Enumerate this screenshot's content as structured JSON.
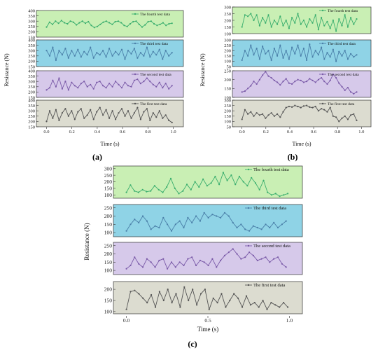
{
  "figure": {
    "panel_labels": [
      "(a)",
      "(b)",
      "(c)"
    ],
    "series_names": [
      "The fourth test data",
      "The third test data",
      "The second test data",
      "The first test data"
    ],
    "series_colors": [
      "#3aae6e",
      "#4a7fa8",
      "#7a5aa8",
      "#555555"
    ],
    "bg_colors": [
      "#c9efb4",
      "#8fd3e6",
      "#d6c9ea",
      "#dcdcd0"
    ],
    "marker": "circle"
  },
  "chart_data": [
    {
      "type": "line",
      "panel": "(a)",
      "xlabel": "Time (s)",
      "ylabel": "Resistance (N)",
      "xlim": [
        -0.08,
        1.08
      ],
      "xticks": [
        "0.0",
        "0.2",
        "0.4",
        "0.6",
        "0.8",
        "1.0"
      ],
      "grid": false,
      "legend_position": "top-right",
      "subplots": [
        {
          "name": "The fourth test data",
          "ylim": [
            150,
            400
          ],
          "yticks": [
            150,
            200,
            250,
            300,
            350,
            400
          ],
          "x_end": 0.99,
          "y": [
            245,
            290,
            270,
            300,
            280,
            305,
            285,
            275,
            300,
            290,
            265,
            285,
            300,
            280,
            295,
            260,
            240,
            250,
            270,
            290,
            300,
            285,
            270,
            295,
            300,
            285,
            260,
            250,
            275,
            295,
            300,
            270,
            245,
            265,
            295,
            300,
            275,
            260,
            270,
            285,
            260,
            275,
            280
          ]
        },
        {
          "name": "The third test data",
          "ylim": [
            150,
            400
          ],
          "yticks": [
            150,
            200,
            250,
            300,
            350,
            400
          ],
          "x_end": 0.99,
          "y": [
            300,
            250,
            330,
            210,
            300,
            260,
            320,
            230,
            300,
            250,
            310,
            240,
            290,
            260,
            330,
            230,
            280,
            260,
            300,
            240,
            320,
            250,
            290,
            260,
            310,
            220,
            300,
            270,
            320,
            230,
            280,
            250,
            330,
            240,
            290,
            260,
            310,
            220,
            300,
            250,
            280
          ]
        },
        {
          "name": "The second test data",
          "ylim": [
            150,
            400
          ],
          "yticks": [
            150,
            200,
            250,
            300,
            350,
            400
          ],
          "x_end": 0.99,
          "y": [
            220,
            240,
            310,
            250,
            330,
            230,
            300,
            220,
            290,
            260,
            240,
            280,
            300,
            250,
            270,
            230,
            290,
            300,
            260,
            240,
            280,
            250,
            300,
            270,
            240,
            290,
            260,
            250,
            310,
            320,
            280,
            300,
            330,
            300,
            270,
            250,
            290,
            240,
            280,
            230,
            260
          ]
        },
        {
          "name": "The first test data",
          "ylim": [
            150,
            400
          ],
          "yticks": [
            150,
            200,
            250,
            300,
            350,
            400
          ],
          "x_end": 0.99,
          "y": [
            200,
            300,
            230,
            310,
            210,
            280,
            320,
            250,
            300,
            220,
            290,
            320,
            230,
            260,
            310,
            220,
            290,
            330,
            260,
            310,
            230,
            300,
            220,
            280,
            320,
            250,
            300,
            230,
            280,
            330,
            220,
            290,
            320,
            210,
            280,
            240,
            300,
            230,
            260,
            210,
            190
          ]
        }
      ]
    },
    {
      "type": "line",
      "panel": "(b)",
      "xlabel": "Time (s)",
      "ylabel": "Resistance (N)",
      "xlim": [
        -0.08,
        1.08
      ],
      "xticks": [
        "0.0",
        "0.2",
        "0.4",
        "0.6",
        "0.8",
        "1.0"
      ],
      "grid": false,
      "legend_position": "top-right",
      "subplots": [
        {
          "name": "The fourth test data",
          "ylim": [
            100,
            300
          ],
          "yticks": [
            100,
            150,
            200,
            250,
            300
          ],
          "x_end": 0.96,
          "y": [
            150,
            240,
            230,
            250,
            200,
            240,
            160,
            220,
            180,
            240,
            150,
            200,
            170,
            230,
            160,
            200,
            140,
            220,
            180,
            250,
            170,
            200,
            150,
            210,
            180,
            240,
            130,
            220,
            160,
            190,
            140,
            200,
            120,
            210,
            160,
            240,
            150,
            220,
            170,
            210
          ]
        },
        {
          "name": "The third test data",
          "ylim": [
            50,
            300
          ],
          "yticks": [
            50,
            100,
            150,
            200,
            250,
            300
          ],
          "x_end": 0.96,
          "y": [
            110,
            200,
            150,
            250,
            160,
            220,
            120,
            240,
            170,
            200,
            110,
            220,
            150,
            250,
            130,
            200,
            120,
            230,
            170,
            250,
            150,
            220,
            110,
            260,
            140,
            200,
            160,
            230,
            120,
            180,
            140,
            210,
            100,
            190,
            150,
            200,
            120,
            170,
            140,
            160
          ]
        },
        {
          "name": "The second test data",
          "ylim": [
            100,
            250
          ],
          "yticks": [
            100,
            150,
            200,
            250
          ],
          "x_end": 0.96,
          "y": [
            130,
            135,
            150,
            165,
            190,
            175,
            200,
            225,
            245,
            220,
            210,
            195,
            185,
            170,
            190,
            205,
            180,
            175,
            190,
            200,
            195,
            185,
            190,
            205,
            195,
            185,
            200,
            210,
            190,
            175,
            195,
            230,
            210,
            180,
            160,
            140,
            155,
            130,
            120,
            130
          ]
        },
        {
          "name": "The first test data",
          "ylim": [
            50,
            300
          ],
          "yticks": [
            50,
            100,
            150,
            200,
            250,
            300
          ],
          "x_end": 0.96,
          "y": [
            120,
            210,
            170,
            190,
            150,
            180,
            160,
            170,
            130,
            160,
            180,
            150,
            170,
            140,
            190,
            230,
            240,
            235,
            250,
            240,
            230,
            245,
            250,
            235,
            230,
            240,
            200,
            220,
            210,
            190,
            230,
            150,
            140,
            100,
            130,
            150,
            120,
            160,
            170,
            110
          ]
        }
      ]
    },
    {
      "type": "line",
      "panel": "(c)",
      "xlabel": "Time (s)",
      "ylabel": "Resistance (N)",
      "xlim": [
        -0.08,
        1.08
      ],
      "xticks": [
        "0.0",
        "0.5",
        "1.0"
      ],
      "grid": false,
      "legend_position": "top-right",
      "subplots": [
        {
          "name": "The fourth test data",
          "ylim": [
            75,
            320
          ],
          "yticks": [
            100,
            150,
            200,
            250,
            300
          ],
          "x_end": 0.99,
          "y": [
            120,
            175,
            130,
            120,
            140,
            125,
            130,
            170,
            140,
            120,
            160,
            225,
            150,
            110,
            130,
            180,
            140,
            200,
            160,
            220,
            170,
            190,
            240,
            180,
            270,
            210,
            250,
            180,
            240,
            200,
            170,
            230,
            190,
            140,
            210,
            120,
            100,
            110,
            90,
            100,
            110
          ]
        },
        {
          "name": "The third test data",
          "ylim": [
            75,
            270
          ],
          "yticks": [
            100,
            150,
            200,
            250
          ],
          "x_end": 0.98,
          "y": [
            110,
            150,
            180,
            160,
            200,
            170,
            120,
            140,
            130,
            190,
            150,
            110,
            150,
            170,
            130,
            190,
            160,
            200,
            170,
            220,
            190,
            210,
            200,
            190,
            220,
            200,
            160,
            130,
            150,
            120,
            110,
            140,
            130,
            120,
            150,
            130,
            160,
            130,
            150,
            170
          ]
        },
        {
          "name": "The second test data",
          "ylim": [
            75,
            270
          ],
          "yticks": [
            100,
            150,
            200,
            250
          ],
          "x_end": 0.98,
          "y": [
            110,
            130,
            180,
            140,
            120,
            170,
            150,
            120,
            160,
            170,
            110,
            150,
            120,
            150,
            130,
            170,
            180,
            130,
            160,
            150,
            130,
            170,
            120,
            160,
            190,
            210,
            230,
            200,
            170,
            180,
            210,
            190,
            160,
            170,
            180,
            150,
            170,
            180,
            140,
            120
          ]
        },
        {
          "name": "The first test data",
          "ylim": [
            90,
            235
          ],
          "yticks": [
            100,
            150,
            200
          ],
          "x_end": 0.99,
          "y": [
            110,
            190,
            195,
            180,
            160,
            140,
            175,
            120,
            190,
            150,
            200,
            140,
            180,
            120,
            210,
            150,
            200,
            130,
            180,
            200,
            110,
            160,
            140,
            180,
            120,
            150,
            180,
            160,
            120,
            170,
            130,
            140,
            120,
            150,
            110,
            140,
            130,
            120,
            140,
            120
          ]
        }
      ]
    }
  ]
}
